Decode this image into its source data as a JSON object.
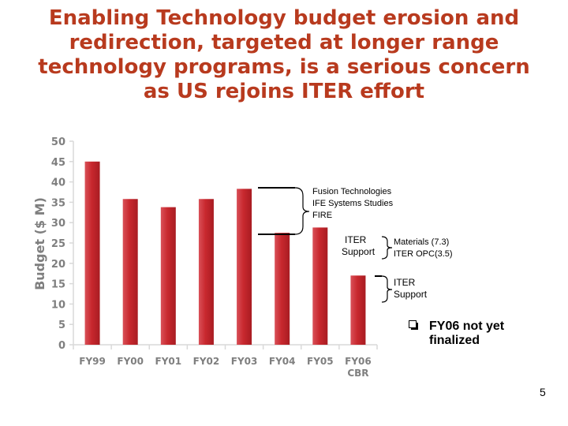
{
  "slide": {
    "title_lines": [
      "Enabling Technology budget erosion and",
      "redirection, targeted at longer range",
      "technology programs, is a serious concern",
      "as US rejoins ITER effort"
    ],
    "page_number": "5"
  },
  "chart_data": {
    "type": "bar",
    "title": "",
    "xlabel": "",
    "ylabel": "Budget ($ M)",
    "ylim": [
      0,
      50
    ],
    "yticks": [
      0,
      5,
      10,
      15,
      20,
      25,
      30,
      35,
      40,
      45,
      50
    ],
    "categories": [
      "FY99",
      "FY00",
      "FY01",
      "FY02",
      "FY03",
      "FY04",
      "FY05",
      "FY06 CBR"
    ],
    "category_lines": [
      [
        "FY99"
      ],
      [
        "FY00"
      ],
      [
        "FY01"
      ],
      [
        "FY02"
      ],
      [
        "FY03"
      ],
      [
        "FY04"
      ],
      [
        "FY05"
      ],
      [
        "FY06",
        "CBR"
      ]
    ],
    "values": [
      45,
      35.8,
      33.8,
      35.8,
      38.3,
      27.5,
      28.8,
      17
    ],
    "bar_color": "#c8282e",
    "axis_label_color": "#7f7f7f"
  },
  "annotations": {
    "fusion_group": [
      "Fusion Technologies",
      "IFE Systems Studies",
      "FIRE"
    ],
    "iter_support_a": [
      "ITER",
      "Support"
    ],
    "materials_group": [
      "Materials (7.3)",
      "ITER OPC(3.5)"
    ],
    "iter_support_b": [
      "ITER",
      "Support"
    ]
  },
  "note": {
    "bullet_icon": "checkbox-bullet-icon",
    "lines": [
      "FY06 not yet",
      "finalized"
    ]
  }
}
